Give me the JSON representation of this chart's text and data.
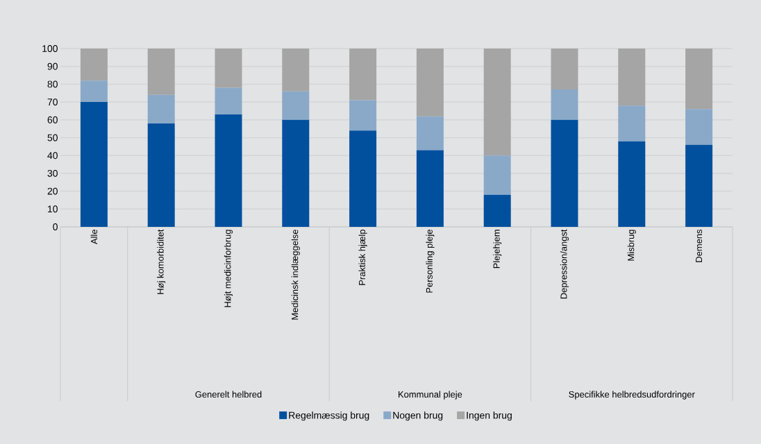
{
  "chart_data": {
    "type": "bar",
    "stacked": true,
    "categories": [
      "Alle",
      "Høj komorbiditet",
      "Højt medicinforbrug",
      "Medicinsk indlæggelse",
      "Praktisk hjælp",
      "Personling pleje",
      "Plejehjem",
      "Depression/angst",
      "Misbrug",
      "Demens"
    ],
    "series": [
      {
        "name": "Regelmæssig brug",
        "color": "#00509e",
        "values": [
          70,
          58,
          63,
          60,
          54,
          43,
          18,
          60,
          48,
          46
        ]
      },
      {
        "name": "Nogen brug",
        "color": "#8aa9c8",
        "values": [
          12,
          16,
          15,
          16,
          17,
          19,
          22,
          17,
          20,
          20
        ]
      },
      {
        "name": "Ingen brug",
        "color": "#a5a5a5",
        "values": [
          18,
          26,
          22,
          24,
          29,
          38,
          60,
          23,
          32,
          34
        ]
      }
    ],
    "ylim": [
      0,
      100
    ],
    "yticks": [
      0,
      10,
      20,
      30,
      40,
      50,
      60,
      70,
      80,
      90,
      100
    ],
    "grid": "y",
    "legend": "bottom",
    "annotations": [
      "Generelt helbred",
      "Kommunal pleje",
      "Specifikke helbredsudfordringer"
    ]
  }
}
